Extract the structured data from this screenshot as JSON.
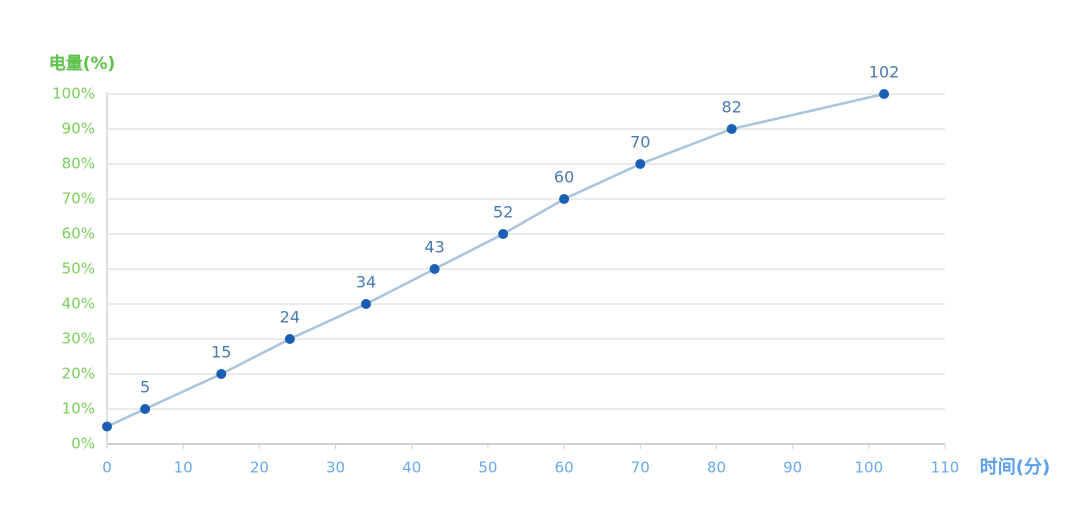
{
  "chart_data": {
    "type": "line",
    "y_label": "电量(%)",
    "x_label": "时间(分)",
    "x": [
      0,
      5,
      15,
      24,
      34,
      43,
      52,
      60,
      70,
      82,
      102
    ],
    "series": [
      {
        "color": "#1a5fb4",
        "line_color": "#a9c4dc",
        "values": [
          5,
          10,
          20,
          30,
          40,
          50,
          60,
          70,
          80,
          90,
          100
        ]
      }
    ],
    "xlim": [
      0,
      110
    ],
    "xticks": [
      0,
      10,
      20,
      30,
      40,
      50,
      60,
      70,
      80,
      90,
      100,
      110
    ],
    "ylim": [
      0,
      100
    ],
    "yticks": [
      {
        "value": 0,
        "label": "0%"
      },
      {
        "value": 10,
        "label": "10%"
      },
      {
        "value": 20,
        "label": "20%"
      },
      {
        "value": 30,
        "label": "30%"
      },
      {
        "value": 40,
        "label": "40%"
      },
      {
        "value": 50,
        "label": "50%"
      },
      {
        "value": 60,
        "label": "60%"
      },
      {
        "value": 70,
        "label": "70%"
      },
      {
        "value": 80,
        "label": "80%"
      },
      {
        "value": 90,
        "label": "90%"
      },
      {
        "value": 100,
        "label": "100%"
      }
    ],
    "grid": true
  }
}
